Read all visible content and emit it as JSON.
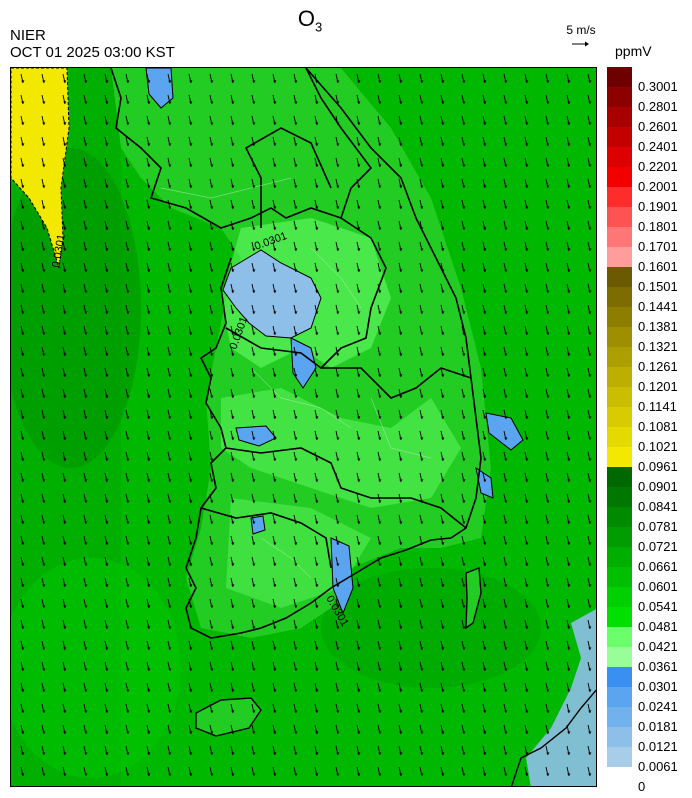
{
  "header": {
    "title_main": "O",
    "title_sub": "3",
    "organization": "NIER",
    "datetime": "OCT 01 2025 03:00 KST",
    "wind_reference": "5 m/s",
    "unit": "ppmV"
  },
  "colorbar": {
    "labels": [
      "0.3001",
      "0.2801",
      "0.2601",
      "0.2401",
      "0.2201",
      "0.2001",
      "0.1901",
      "0.1801",
      "0.1701",
      "0.1601",
      "0.1501",
      "0.1441",
      "0.1381",
      "0.1321",
      "0.1261",
      "0.1201",
      "0.1141",
      "0.1081",
      "0.1021",
      "0.0961",
      "0.0901",
      "0.0841",
      "0.0781",
      "0.0721",
      "0.0661",
      "0.0601",
      "0.0541",
      "0.0481",
      "0.0421",
      "0.0361",
      "0.0301",
      "0.0241",
      "0.0181",
      "0.0121",
      "0.0061",
      "0"
    ],
    "colors": [
      "#6e0000",
      "#8c0000",
      "#a80000",
      "#c20000",
      "#dc0000",
      "#f20000",
      "#ff2c2c",
      "#ff5252",
      "#ff7676",
      "#ff9c9c",
      "#6b5a00",
      "#7d6d00",
      "#8e7e00",
      "#9e8f00",
      "#ae9f00",
      "#bdaf00",
      "#cbbe00",
      "#d8cc00",
      "#e4da00",
      "#f2e800",
      "#006800",
      "#007800",
      "#008a00",
      "#009c00",
      "#00ae00",
      "#00bf00",
      "#00d000",
      "#00e000",
      "#6cff6c",
      "#98ff98",
      "#3a90f0",
      "#5aa4f0",
      "#72b2ec",
      "#8ebfe8",
      "#a8cde8"
    ]
  },
  "map": {
    "annotations": [
      "0.0301",
      "0.0301",
      "0.0301",
      "0.0301"
    ]
  }
}
